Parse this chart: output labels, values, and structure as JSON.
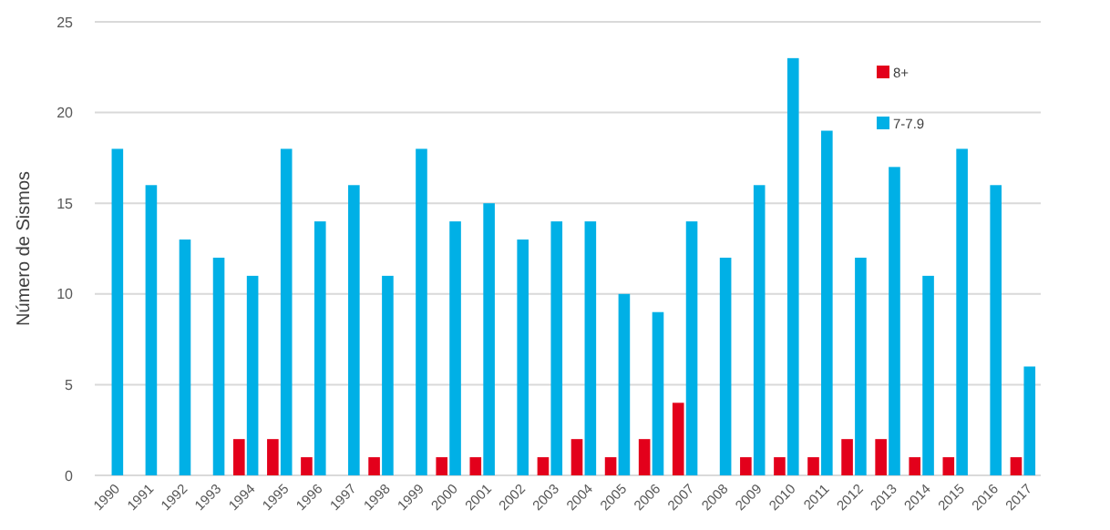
{
  "chart_data": {
    "type": "bar",
    "ylabel": "Número de Sismos",
    "categories": [
      "1990",
      "1991",
      "1992",
      "1993",
      "1994",
      "1995",
      "1996",
      "1997",
      "1998",
      "1999",
      "2000",
      "2001",
      "2002",
      "2003",
      "2004",
      "2005",
      "2006",
      "2007",
      "2008",
      "2009",
      "2010",
      "2011",
      "2012",
      "2013",
      "2014",
      "2015",
      "2016",
      "2017"
    ],
    "series": [
      {
        "name": "8+",
        "color": "#e3001b",
        "values": [
          0,
          0,
          0,
          0,
          2,
          2,
          1,
          0,
          1,
          0,
          1,
          1,
          0,
          1,
          2,
          1,
          2,
          4,
          0,
          1,
          1,
          1,
          2,
          2,
          1,
          1,
          0,
          1
        ]
      },
      {
        "name": "7-7.9",
        "color": "#00b0e6",
        "values": [
          18,
          16,
          13,
          12,
          11,
          18,
          14,
          16,
          11,
          18,
          14,
          15,
          13,
          14,
          14,
          10,
          9,
          14,
          12,
          16,
          23,
          19,
          12,
          17,
          11,
          18,
          16,
          6
        ]
      }
    ],
    "ylim": [
      0,
      25
    ],
    "yticks": [
      0,
      5,
      10,
      15,
      20,
      25
    ],
    "grid": "y",
    "legend": "top right"
  }
}
